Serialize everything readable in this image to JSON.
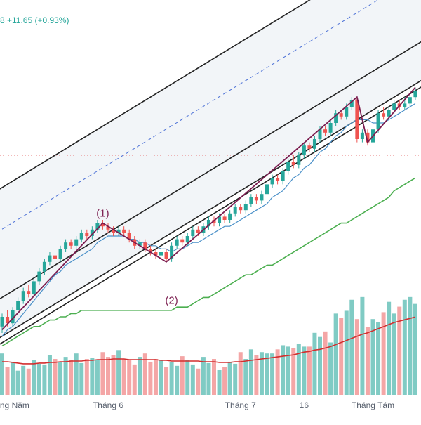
{
  "header": {
    "change_text": "8  +11.65 (+0.93%)"
  },
  "colors": {
    "up": "#26a69a",
    "down": "#ef5350",
    "vol_up": "#80cbc4",
    "vol_down": "#f4a6a6",
    "sma_short": "#4a90c8",
    "sma_long": "#4caf50",
    "vol_ma": "#d32f2f",
    "zigzag": "#7b1d4f",
    "channel": "#222222",
    "channel_mid": "#4a6fd6",
    "ref_line": "#e57373",
    "band_fill": "#e8ecf3"
  },
  "chart_data": {
    "type": "candlestick",
    "x_labels": [
      {
        "i": 1,
        "text": "Tháng Năm"
      },
      {
        "i": 20,
        "text": "Tháng 6"
      },
      {
        "i": 45,
        "text": "Tháng 7"
      },
      {
        "i": 57,
        "text": "16"
      },
      {
        "i": 70,
        "text": "Tháng Tám"
      }
    ],
    "annotations": [
      {
        "i": 19,
        "price": 1271,
        "text": "(1)"
      },
      {
        "i": 32,
        "price": 1244,
        "text": "(2)"
      }
    ],
    "reference_price": 1290,
    "candles": [
      [
        1237,
        1240,
        1235,
        1241
      ],
      [
        1240,
        1238,
        1237,
        1242
      ],
      [
        1238,
        1242,
        1237,
        1243
      ],
      [
        1242,
        1245,
        1241,
        1246
      ],
      [
        1245,
        1248,
        1244,
        1249
      ],
      [
        1248,
        1247,
        1246,
        1250
      ],
      [
        1247,
        1251,
        1246,
        1252
      ],
      [
        1251,
        1254,
        1250,
        1255
      ],
      [
        1254,
        1257,
        1253,
        1258
      ],
      [
        1257,
        1259,
        1256,
        1260
      ],
      [
        1259,
        1258,
        1257,
        1261
      ],
      [
        1258,
        1261,
        1257,
        1262
      ],
      [
        1261,
        1263,
        1260,
        1264
      ],
      [
        1263,
        1262,
        1261,
        1264
      ],
      [
        1262,
        1264,
        1261,
        1265
      ],
      [
        1264,
        1266,
        1263,
        1267
      ],
      [
        1266,
        1265,
        1264,
        1267
      ],
      [
        1265,
        1267,
        1264,
        1268
      ],
      [
        1267,
        1269,
        1266,
        1270
      ],
      [
        1269,
        1268,
        1267,
        1270
      ],
      [
        1268,
        1267,
        1266,
        1269
      ],
      [
        1267,
        1266,
        1265,
        1268
      ],
      [
        1266,
        1267,
        1265,
        1268
      ],
      [
        1267,
        1266,
        1265,
        1268
      ],
      [
        1266,
        1264,
        1263,
        1267
      ],
      [
        1264,
        1262,
        1261,
        1265
      ],
      [
        1262,
        1263,
        1261,
        1264
      ],
      [
        1263,
        1261,
        1260,
        1264
      ],
      [
        1261,
        1260,
        1259,
        1262
      ],
      [
        1260,
        1259,
        1258,
        1261
      ],
      [
        1259,
        1260,
        1258,
        1261
      ],
      [
        1260,
        1258,
        1257,
        1261
      ],
      [
        1258,
        1262,
        1257,
        1263
      ],
      [
        1262,
        1264,
        1261,
        1265
      ],
      [
        1264,
        1263,
        1262,
        1265
      ],
      [
        1263,
        1265,
        1262,
        1266
      ],
      [
        1265,
        1267,
        1264,
        1268
      ],
      [
        1267,
        1266,
        1265,
        1268
      ],
      [
        1266,
        1268,
        1265,
        1269
      ],
      [
        1268,
        1270,
        1267,
        1271
      ],
      [
        1270,
        1269,
        1268,
        1271
      ],
      [
        1269,
        1271,
        1268,
        1272
      ],
      [
        1271,
        1270,
        1269,
        1272
      ],
      [
        1270,
        1272,
        1269,
        1273
      ],
      [
        1272,
        1274,
        1271,
        1275
      ],
      [
        1274,
        1273,
        1272,
        1275
      ],
      [
        1273,
        1275,
        1272,
        1276
      ],
      [
        1275,
        1277,
        1274,
        1278
      ],
      [
        1277,
        1276,
        1275,
        1278
      ],
      [
        1276,
        1278,
        1275,
        1279
      ],
      [
        1278,
        1281,
        1277,
        1282
      ],
      [
        1281,
        1283,
        1280,
        1284
      ],
      [
        1283,
        1282,
        1281,
        1284
      ],
      [
        1282,
        1285,
        1281,
        1286
      ],
      [
        1285,
        1288,
        1284,
        1289
      ],
      [
        1288,
        1287,
        1286,
        1290
      ],
      [
        1287,
        1290,
        1286,
        1291
      ],
      [
        1290,
        1293,
        1289,
        1294
      ],
      [
        1293,
        1292,
        1291,
        1294
      ],
      [
        1292,
        1295,
        1291,
        1296
      ],
      [
        1295,
        1298,
        1294,
        1299
      ],
      [
        1298,
        1297,
        1296,
        1299
      ],
      [
        1297,
        1300,
        1296,
        1301
      ],
      [
        1300,
        1303,
        1299,
        1304
      ],
      [
        1303,
        1302,
        1301,
        1304
      ],
      [
        1302,
        1305,
        1301,
        1306
      ],
      [
        1305,
        1307,
        1304,
        1308
      ],
      [
        1307,
        1295,
        1294,
        1308
      ],
      [
        1295,
        1297,
        1294,
        1298
      ],
      [
        1297,
        1294,
        1293,
        1298
      ],
      [
        1294,
        1298,
        1293,
        1299
      ],
      [
        1298,
        1303,
        1297,
        1304
      ],
      [
        1303,
        1302,
        1301,
        1305
      ],
      [
        1302,
        1304,
        1301,
        1305
      ],
      [
        1304,
        1306,
        1303,
        1307
      ],
      [
        1306,
        1305,
        1304,
        1307
      ],
      [
        1305,
        1306,
        1304,
        1308
      ],
      [
        1306,
        1308,
        1305,
        1309
      ],
      [
        1308,
        1310,
        1307,
        1311
      ]
    ],
    "volume": [
      60,
      40,
      48,
      35,
      42,
      38,
      50,
      45,
      44,
      58,
      52,
      48,
      55,
      50,
      60,
      46,
      52,
      54,
      50,
      62,
      55,
      58,
      65,
      52,
      50,
      44,
      55,
      60,
      48,
      52,
      50,
      40,
      48,
      42,
      56,
      50,
      44,
      38,
      55,
      46,
      52,
      36,
      40,
      48,
      45,
      62,
      52,
      66,
      58,
      62,
      60,
      60,
      66,
      72,
      70,
      68,
      74,
      70,
      70,
      90,
      84,
      92,
      76,
      118,
      112,
      122,
      138,
      110,
      142,
      98,
      110,
      106,
      120,
      135,
      118,
      128,
      138,
      142,
      132
    ],
    "vol_ma": [
      48,
      48,
      47,
      46,
      45,
      45,
      45,
      46,
      46,
      47,
      47,
      48,
      48,
      49,
      49,
      49,
      50,
      50,
      51,
      51,
      51,
      52,
      52,
      52,
      51,
      51,
      51,
      51,
      51,
      51,
      50,
      50,
      49,
      49,
      49,
      49,
      49,
      49,
      48,
      48,
      48,
      47,
      47,
      47,
      48,
      48,
      49,
      50,
      51,
      52,
      53,
      54,
      55,
      56,
      57,
      58,
      60,
      62,
      63,
      65,
      66,
      68,
      70,
      73,
      76,
      79,
      82,
      85,
      88,
      90,
      93,
      96,
      99,
      102,
      105,
      107,
      109,
      111,
      113
    ],
    "sma_short": [
      1234,
      1236,
      1237,
      1239,
      1241,
      1243,
      1245,
      1247,
      1249,
      1251,
      1253,
      1254,
      1256,
      1257,
      1258,
      1259,
      1260,
      1261,
      1263,
      1264,
      1265,
      1265,
      1265,
      1265,
      1264,
      1264,
      1263,
      1263,
      1262,
      1262,
      1261,
      1261,
      1260,
      1261,
      1261,
      1262,
      1263,
      1263,
      1264,
      1265,
      1266,
      1267,
      1268,
      1268,
      1269,
      1270,
      1271,
      1272,
      1273,
      1274,
      1275,
      1277,
      1278,
      1279,
      1281,
      1283,
      1284,
      1286,
      1287,
      1289,
      1291,
      1292,
      1294,
      1296,
      1297,
      1299,
      1300,
      1301,
      1301,
      1301,
      1300,
      1300,
      1300,
      1301,
      1302,
      1303,
      1304,
      1305,
      1306
    ],
    "sma_long": [
      1231,
      1232,
      1233,
      1234,
      1235,
      1236,
      1237,
      1237,
      1238,
      1239,
      1239,
      1240,
      1240,
      1241,
      1241,
      1242,
      1242,
      1242,
      1242,
      1242,
      1242,
      1242,
      1242,
      1242,
      1242,
      1242,
      1242,
      1242,
      1242,
      1242,
      1242,
      1242,
      1242,
      1243,
      1243,
      1243,
      1244,
      1245,
      1246,
      1246,
      1247,
      1248,
      1249,
      1250,
      1251,
      1252,
      1253,
      1253,
      1254,
      1255,
      1256,
      1256,
      1257,
      1258,
      1259,
      1260,
      1261,
      1262,
      1263,
      1264,
      1265,
      1266,
      1267,
      1268,
      1269,
      1269,
      1270,
      1271,
      1272,
      1273,
      1274,
      1275,
      1276,
      1277,
      1279,
      1280,
      1281,
      1282,
      1283
    ],
    "zigzag": [
      {
        "i": 0,
        "price": 1236
      },
      {
        "i": 19,
        "price": 1269
      },
      {
        "i": 31,
        "price": 1257
      },
      {
        "i": 67,
        "price": 1308
      },
      {
        "i": 69,
        "price": 1294
      },
      {
        "i": 78,
        "price": 1311
      }
    ],
    "channels": [
      {
        "name": "outer",
        "start": {
          "i": 0,
          "price": 1234
        },
        "slope": 1.0,
        "width": 46,
        "fill": true
      },
      {
        "name": "inner",
        "start": {
          "i": 0,
          "price": 1232
        },
        "slope": 1.0,
        "width": 14,
        "fill": false
      }
    ]
  }
}
